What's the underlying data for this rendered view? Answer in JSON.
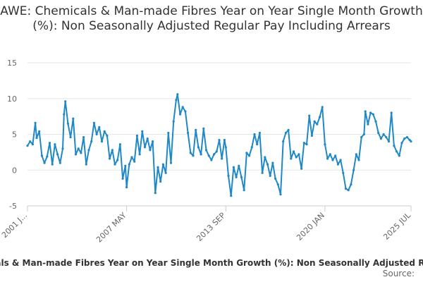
{
  "chart_data": {
    "type": "line",
    "title": "AWE: Chemicals & Man-made Fibres Year on Year Single Month Growth (%): Non Seasonally Adjusted Regular Pay Including Arrears",
    "xlabel": "",
    "ylabel": "",
    "ylim": [
      -5,
      15
    ],
    "yticks": [
      -5,
      0,
      5,
      10,
      15
    ],
    "xlim": [
      "2001 JAN",
      "2025 JUL"
    ],
    "xtick_labels": [
      "2001 J...",
      "2007 MAY",
      "2013 SEP",
      "2020 JAN",
      "2025 JUL"
    ],
    "xtick_positions": [
      "2001 JAN",
      "2007 MAY",
      "2013 SEP",
      "2020 JAN",
      "2025 JUL"
    ],
    "grid": true,
    "legend_position": "bottom",
    "series": [
      {
        "name": "AWE: Chemicals & Man-made Fibres Year on Year Single Month Growth (%): Non Seasonally Adjusted Regular Pay Including Arrears",
        "color": "#1f88c6",
        "points": [
          [
            "2001 JAN",
            3.4
          ],
          [
            "2001 MAR",
            4.0
          ],
          [
            "2001 MAY",
            3.6
          ],
          [
            "2001 JUL",
            6.6
          ],
          [
            "2001 AUG",
            4.5
          ],
          [
            "2001 OCT",
            5.4
          ],
          [
            "2001 DEC",
            2.0
          ],
          [
            "2002 FEB",
            1.0
          ],
          [
            "2002 APR",
            1.9
          ],
          [
            "2002 JUN",
            3.8
          ],
          [
            "2002 AUG",
            0.8
          ],
          [
            "2002 OCT",
            3.6
          ],
          [
            "2002 DEC",
            2.2
          ],
          [
            "2003 FEB",
            1.0
          ],
          [
            "2003 APR",
            3.0
          ],
          [
            "2003 MAY",
            7.8
          ],
          [
            "2003 JUN",
            9.6
          ],
          [
            "2003 AUG",
            6.5
          ],
          [
            "2003 OCT",
            4.6
          ],
          [
            "2003 DEC",
            7.2
          ],
          [
            "2004 FEB",
            2.2
          ],
          [
            "2004 APR",
            3.0
          ],
          [
            "2004 JUN",
            2.4
          ],
          [
            "2004 AUG",
            4.6
          ],
          [
            "2004 OCT",
            0.8
          ],
          [
            "2004 DEC",
            2.8
          ],
          [
            "2005 FEB",
            4.0
          ],
          [
            "2005 APR",
            6.6
          ],
          [
            "2005 JUN",
            5.0
          ],
          [
            "2005 AUG",
            6.0
          ],
          [
            "2005 OCT",
            4.0
          ],
          [
            "2005 DEC",
            5.4
          ],
          [
            "2006 FEB",
            4.8
          ],
          [
            "2006 APR",
            1.6
          ],
          [
            "2006 JUN",
            2.8
          ],
          [
            "2006 AUG",
            0.8
          ],
          [
            "2006 OCT",
            1.4
          ],
          [
            "2006 DEC",
            3.6
          ],
          [
            "2007 FEB",
            -1.2
          ],
          [
            "2007 APR",
            0.6
          ],
          [
            "2007 MAY",
            -2.4
          ],
          [
            "2007 JUL",
            0.8
          ],
          [
            "2007 SEP",
            1.8
          ],
          [
            "2007 NOV",
            1.2
          ],
          [
            "2008 JAN",
            4.8
          ],
          [
            "2008 MAR",
            2.2
          ],
          [
            "2008 MAY",
            5.4
          ],
          [
            "2008 JUL",
            3.2
          ],
          [
            "2008 SEP",
            4.4
          ],
          [
            "2008 NOV",
            2.8
          ],
          [
            "2009 JAN",
            4.0
          ],
          [
            "2009 MAR",
            -3.2
          ],
          [
            "2009 MAY",
            0.4
          ],
          [
            "2009 JUL",
            -1.6
          ],
          [
            "2009 SEP",
            0.8
          ],
          [
            "2009 NOV",
            -0.4
          ],
          [
            "2010 JAN",
            5.2
          ],
          [
            "2010 MAR",
            1.0
          ],
          [
            "2010 MAY",
            6.8
          ],
          [
            "2010 JUL",
            9.8
          ],
          [
            "2010 AUG",
            10.6
          ],
          [
            "2010 OCT",
            7.8
          ],
          [
            "2010 DEC",
            8.8
          ],
          [
            "2011 FEB",
            8.2
          ],
          [
            "2011 APR",
            5.2
          ],
          [
            "2011 JUN",
            2.4
          ],
          [
            "2011 AUG",
            2.0
          ],
          [
            "2011 OCT",
            5.6
          ],
          [
            "2011 DEC",
            3.2
          ],
          [
            "2012 FEB",
            2.2
          ],
          [
            "2012 APR",
            5.8
          ],
          [
            "2012 JUN",
            2.8
          ],
          [
            "2012 AUG",
            2.0
          ],
          [
            "2012 OCT",
            1.4
          ],
          [
            "2012 DEC",
            2.2
          ],
          [
            "2013 FEB",
            2.6
          ],
          [
            "2013 APR",
            4.2
          ],
          [
            "2013 JUN",
            1.6
          ],
          [
            "2013 AUG",
            4.2
          ],
          [
            "2013 SEP",
            3.2
          ],
          [
            "2013 NOV",
            -0.8
          ],
          [
            "2014 JAN",
            -3.6
          ],
          [
            "2014 MAR",
            0.4
          ],
          [
            "2014 MAY",
            -1.0
          ],
          [
            "2014 JUL",
            0.6
          ],
          [
            "2014 SEP",
            -1.0
          ],
          [
            "2014 NOV",
            -2.8
          ],
          [
            "2015 JAN",
            2.4
          ],
          [
            "2015 MAR",
            2.0
          ],
          [
            "2015 MAY",
            3.2
          ],
          [
            "2015 JUL",
            5.0
          ],
          [
            "2015 SEP",
            3.6
          ],
          [
            "2015 NOV",
            5.2
          ],
          [
            "2016 JAN",
            -0.4
          ],
          [
            "2016 MAR",
            1.8
          ],
          [
            "2016 MAY",
            0.8
          ],
          [
            "2016 JUL",
            -0.8
          ],
          [
            "2016 SEP",
            1.0
          ],
          [
            "2016 NOV",
            -1.2
          ],
          [
            "2017 JAN",
            -2.0
          ],
          [
            "2017 MAR",
            -3.4
          ],
          [
            "2017 MAY",
            4.0
          ],
          [
            "2017 JUL",
            5.2
          ],
          [
            "2017 SEP",
            5.6
          ],
          [
            "2017 NOV",
            1.6
          ],
          [
            "2018 JAN",
            2.6
          ],
          [
            "2018 MAR",
            1.8
          ],
          [
            "2018 MAY",
            2.2
          ],
          [
            "2018 JUL",
            0.2
          ],
          [
            "2018 SEP",
            3.8
          ],
          [
            "2018 NOV",
            3.6
          ],
          [
            "2019 JAN",
            7.6
          ],
          [
            "2019 MAR",
            4.8
          ],
          [
            "2019 MAY",
            6.8
          ],
          [
            "2019 JUL",
            6.4
          ],
          [
            "2019 SEP",
            7.4
          ],
          [
            "2019 NOV",
            8.8
          ],
          [
            "2020 JAN",
            3.6
          ],
          [
            "2020 MAR",
            1.6
          ],
          [
            "2020 MAY",
            2.2
          ],
          [
            "2020 JUL",
            1.4
          ],
          [
            "2020 SEP",
            2.0
          ],
          [
            "2020 NOV",
            0.8
          ],
          [
            "2021 JAN",
            1.4
          ],
          [
            "2021 MAR",
            -0.4
          ],
          [
            "2021 MAY",
            -2.6
          ],
          [
            "2021 JUL",
            -2.8
          ],
          [
            "2021 SEP",
            -2.0
          ],
          [
            "2021 NOV",
            0.0
          ],
          [
            "2022 JAN",
            2.2
          ],
          [
            "2022 MAR",
            1.4
          ],
          [
            "2022 MAY",
            4.6
          ],
          [
            "2022 JUL",
            5.0
          ],
          [
            "2022 AUG",
            8.2
          ],
          [
            "2022 OCT",
            6.4
          ],
          [
            "2022 DEC",
            8.0
          ],
          [
            "2023 FEB",
            7.8
          ],
          [
            "2023 APR",
            6.8
          ],
          [
            "2023 JUN",
            5.2
          ],
          [
            "2023 AUG",
            4.4
          ],
          [
            "2023 OCT",
            5.0
          ],
          [
            "2023 DEC",
            4.6
          ],
          [
            "2024 FEB",
            4.0
          ],
          [
            "2024 APR",
            8.0
          ],
          [
            "2024 JUN",
            3.4
          ],
          [
            "2024 AUG",
            2.6
          ],
          [
            "2024 OCT",
            2.0
          ],
          [
            "2024 DEC",
            3.8
          ],
          [
            "2025 FEB",
            4.4
          ],
          [
            "2025 APR",
            4.6
          ],
          [
            "2025 JUN",
            4.2
          ],
          [
            "2025 JUL",
            4.0
          ]
        ]
      }
    ]
  },
  "legend": {
    "text": "AWE: Chemicals & Man-made Fibres Year on Year Single Month Growth (%): Non Seasonally Adjusted Regular Pay Including Arrears"
  },
  "source": {
    "text": "Source:"
  }
}
